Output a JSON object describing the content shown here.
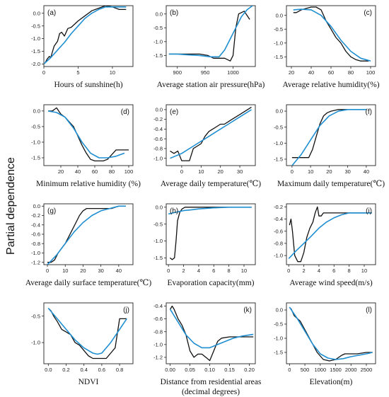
{
  "figure": {
    "ylabel": "Partial dependence",
    "colors": {
      "observed": "#111111",
      "fit": "#1f8fd1",
      "axis": "#222222"
    }
  },
  "chart_data": [
    {
      "type": "line",
      "panel": "(a)",
      "xlabel": "Hours of sunshine(h)",
      "xlim": [
        0,
        13
      ],
      "ylim": [
        -2.1,
        0.3
      ],
      "xticks": [
        0,
        5,
        10
      ],
      "yticks": [
        -2.0,
        -1.5,
        -1.0,
        -0.5,
        0.0
      ],
      "series": [
        {
          "x": [
            0.2,
            0.5,
            0.8,
            1.0,
            1.5,
            2.0,
            2.3,
            2.6,
            3.0,
            3.5,
            4.0,
            5.0,
            6.0,
            7.0,
            8.0,
            9.0,
            10.0,
            11.0,
            12.0
          ],
          "y": [
            -1.95,
            -1.8,
            -1.7,
            -1.75,
            -1.3,
            -1.1,
            -0.8,
            -0.75,
            -0.9,
            -0.6,
            -0.55,
            -0.3,
            -0.1,
            0.1,
            0.2,
            0.3,
            0.25,
            0.15,
            0.15
          ]
        },
        {
          "x": [
            0,
            1,
            2,
            3,
            4,
            5,
            6,
            7,
            8,
            9,
            10,
            11,
            12
          ],
          "y": [
            -2.0,
            -1.75,
            -1.45,
            -1.15,
            -0.8,
            -0.5,
            -0.2,
            0.0,
            0.15,
            0.25,
            0.25,
            0.25,
            0.25
          ]
        }
      ]
    },
    {
      "type": "line",
      "panel": "(b)",
      "xlabel": "Average station air pressure(hPa)",
      "xlim": [
        880,
        1040
      ],
      "ylim": [
        -1.9,
        0.3
      ],
      "xticks": [
        900,
        950,
        1000
      ],
      "yticks": [
        -1.5,
        -1.0,
        -0.5,
        0.0
      ],
      "series": [
        {
          "x": [
            885,
            900,
            920,
            940,
            955,
            965,
            975,
            985,
            995,
            1000,
            1005,
            1010,
            1020,
            1030
          ],
          "y": [
            -1.45,
            -1.45,
            -1.45,
            -1.45,
            -1.5,
            -1.6,
            -1.6,
            -1.6,
            -1.7,
            -1.5,
            -0.5,
            0.0,
            0.1,
            -0.2
          ]
        },
        {
          "x": [
            885,
            900,
            920,
            940,
            960,
            975,
            985,
            995,
            1005,
            1015,
            1025,
            1035
          ],
          "y": [
            -1.45,
            -1.45,
            -1.48,
            -1.5,
            -1.55,
            -1.55,
            -1.3,
            -0.9,
            -0.5,
            -0.1,
            0.15,
            0.3
          ]
        }
      ]
    },
    {
      "type": "line",
      "panel": "(c)",
      "xlabel": "Average relative humidity(%)",
      "xlim": [
        15,
        105
      ],
      "ylim": [
        -1.85,
        0.35
      ],
      "xticks": [
        20,
        40,
        60,
        80,
        100
      ],
      "yticks": [
        -1.5,
        -1.0,
        -0.5,
        0.0
      ],
      "series": [
        {
          "x": [
            22,
            25,
            30,
            35,
            40,
            45,
            50,
            55,
            60,
            65,
            70,
            75,
            80,
            85,
            90,
            95,
            98
          ],
          "y": [
            0.1,
            0.1,
            0.2,
            0.25,
            0.3,
            0.3,
            0.2,
            -0.2,
            -0.5,
            -0.8,
            -1.0,
            -1.3,
            -1.5,
            -1.6,
            -1.65,
            -1.65,
            -1.65
          ]
        },
        {
          "x": [
            22,
            30,
            40,
            50,
            60,
            70,
            80,
            90,
            100
          ],
          "y": [
            0.2,
            0.22,
            0.2,
            0.0,
            -0.4,
            -0.9,
            -1.3,
            -1.55,
            -1.65
          ]
        }
      ]
    },
    {
      "type": "line",
      "panel": "(d)",
      "xlabel": "Minimum relative humidity (%)",
      "xlim": [
        0,
        105
      ],
      "ylim": [
        -1.75,
        0.2
      ],
      "xticks": [
        20,
        40,
        60,
        80,
        100
      ],
      "yticks": [
        -1.5,
        -1.0,
        -0.5,
        0.0
      ],
      "series": [
        {
          "x": [
            5,
            10,
            15,
            20,
            25,
            30,
            35,
            40,
            45,
            50,
            55,
            60,
            65,
            70,
            75,
            80,
            85,
            90,
            95,
            100
          ],
          "y": [
            0.0,
            0.0,
            0.1,
            -0.1,
            -0.2,
            -0.35,
            -0.5,
            -0.8,
            -1.1,
            -1.35,
            -1.55,
            -1.6,
            -1.6,
            -1.6,
            -1.55,
            -1.4,
            -1.25,
            -1.25,
            -1.25,
            -1.25
          ]
        },
        {
          "x": [
            5,
            15,
            25,
            35,
            45,
            55,
            65,
            75,
            85,
            95
          ],
          "y": [
            0.0,
            -0.05,
            -0.2,
            -0.55,
            -1.0,
            -1.35,
            -1.5,
            -1.5,
            -1.45,
            -1.35
          ]
        }
      ]
    },
    {
      "type": "line",
      "panel": "(e)",
      "xlabel": "Average daily temperature(℃)",
      "xlim": [
        -8,
        38
      ],
      "ylim": [
        -1.15,
        0.1
      ],
      "xticks": [
        0,
        10,
        20,
        30
      ],
      "yticks": [
        -1.0,
        -0.8,
        -0.6,
        -0.4,
        -0.2,
        0.0
      ],
      "series": [
        {
          "x": [
            -6,
            -4,
            -2,
            0,
            2,
            4,
            6,
            8,
            10,
            12,
            14,
            16,
            18,
            20,
            22,
            24,
            26,
            28,
            30,
            32,
            34,
            36
          ],
          "y": [
            -0.85,
            -0.9,
            -0.85,
            -1.05,
            -1.05,
            -1.05,
            -0.8,
            -0.75,
            -0.7,
            -0.55,
            -0.45,
            -0.4,
            -0.35,
            -0.3,
            -0.3,
            -0.25,
            -0.2,
            -0.15,
            -0.1,
            -0.05,
            0.0,
            0.05
          ]
        },
        {
          "x": [
            -6,
            0,
            6,
            12,
            18,
            24,
            30,
            36
          ],
          "y": [
            -1.0,
            -0.9,
            -0.75,
            -0.6,
            -0.45,
            -0.3,
            -0.15,
            0.0
          ]
        }
      ]
    },
    {
      "type": "line",
      "panel": "(f)",
      "xlabel": "Maximum daily temperature(℃)",
      "xlim": [
        -3,
        45
      ],
      "ylim": [
        -1.7,
        0.2
      ],
      "xticks": [
        0,
        10,
        20,
        30,
        40
      ],
      "yticks": [
        -1.5,
        -1.0,
        -0.5,
        0.0
      ],
      "series": [
        {
          "x": [
            0,
            5,
            9,
            11,
            13,
            15,
            17,
            19,
            21,
            25,
            30,
            35,
            40
          ],
          "y": [
            -1.45,
            -1.45,
            -1.45,
            -1.2,
            -0.8,
            -0.4,
            -0.15,
            -0.05,
            0.0,
            0.05,
            0.05,
            0.05,
            0.05
          ]
        },
        {
          "x": [
            0,
            5,
            10,
            15,
            20,
            25,
            30,
            35,
            40
          ],
          "y": [
            -1.7,
            -1.35,
            -0.9,
            -0.45,
            -0.15,
            0.0,
            0.05,
            0.05,
            0.05
          ]
        }
      ]
    },
    {
      "type": "line",
      "panel": "(g)",
      "xlabel": "Average daily surface temperature(℃)",
      "xlim": [
        -2,
        48
      ],
      "ylim": [
        -1.25,
        0.05
      ],
      "xticks": [
        0,
        10,
        20,
        30,
        40
      ],
      "yticks": [
        -1.2,
        -1.0,
        -0.8,
        -0.6,
        -0.4,
        -0.2,
        0.0
      ],
      "series": [
        {
          "x": [
            0,
            2,
            4,
            6,
            8,
            10,
            12,
            14,
            16,
            18,
            20,
            22,
            25,
            28,
            32,
            36,
            40,
            44
          ],
          "y": [
            -1.2,
            -1.2,
            -1.15,
            -1.0,
            -0.9,
            -0.8,
            -0.65,
            -0.5,
            -0.35,
            -0.2,
            -0.1,
            -0.05,
            -0.05,
            -0.05,
            -0.05,
            -0.05,
            0.0,
            0.0
          ]
        },
        {
          "x": [
            0,
            5,
            10,
            15,
            20,
            25,
            30,
            35,
            40,
            44
          ],
          "y": [
            -1.25,
            -1.05,
            -0.8,
            -0.55,
            -0.35,
            -0.2,
            -0.1,
            -0.05,
            0.0,
            0.0
          ]
        }
      ]
    },
    {
      "type": "line",
      "panel": "(h)",
      "xlabel": "Evaporation capacity(mm)",
      "xlim": [
        -0.3,
        11.5
      ],
      "ylim": [
        -1.7,
        0.1
      ],
      "xticks": [
        0,
        2,
        4,
        6,
        8,
        10
      ],
      "yticks": [
        -1.5,
        -1.0,
        -0.5,
        0.0
      ],
      "series": [
        {
          "x": [
            0.2,
            0.5,
            0.8,
            1.0,
            1.2,
            1.5,
            1.8,
            2.2,
            3,
            4,
            6,
            8,
            10,
            11
          ],
          "y": [
            -1.5,
            -1.55,
            -1.5,
            -1.0,
            -0.4,
            -0.15,
            -0.05,
            0.0,
            0.0,
            0.0,
            0.0,
            0.0,
            0.0,
            0.0
          ]
        },
        {
          "x": [
            0,
            1,
            2,
            3,
            4,
            6,
            8,
            10,
            11
          ],
          "y": [
            -0.2,
            -0.15,
            -0.1,
            -0.08,
            -0.05,
            -0.02,
            0.0,
            0.0,
            0.0
          ]
        }
      ]
    },
    {
      "type": "line",
      "panel": "(i)",
      "xlabel": "Average wind speed(m/s)",
      "xlim": [
        -0.3,
        11.5
      ],
      "ylim": [
        -1.15,
        -0.15
      ],
      "xticks": [
        0,
        2,
        4,
        6,
        8,
        10
      ],
      "yticks": [
        -1.0,
        -0.8,
        -0.6,
        -0.4,
        -0.2
      ],
      "series": [
        {
          "x": [
            0.1,
            0.3,
            0.5,
            0.8,
            1.2,
            1.6,
            2.0,
            2.4,
            2.8,
            3.2,
            3.5,
            3.8,
            4.0,
            4.3,
            4.6,
            5,
            6,
            8,
            10,
            11
          ],
          "y": [
            -0.5,
            -0.4,
            -0.6,
            -1.0,
            -1.1,
            -1.1,
            -0.95,
            -0.7,
            -0.55,
            -0.45,
            -0.3,
            -0.2,
            -0.35,
            -0.35,
            -0.3,
            -0.3,
            -0.3,
            -0.3,
            -0.3,
            -0.3
          ]
        },
        {
          "x": [
            0,
            1,
            2,
            3,
            4,
            5,
            6,
            7,
            8,
            10,
            11
          ],
          "y": [
            -1.05,
            -0.92,
            -0.8,
            -0.68,
            -0.55,
            -0.45,
            -0.38,
            -0.33,
            -0.3,
            -0.3,
            -0.3
          ]
        }
      ]
    },
    {
      "type": "line",
      "panel": "(j)",
      "xlabel": "NDVI",
      "xlim": [
        -0.05,
        0.95
      ],
      "ylim": [
        -1.4,
        -0.25
      ],
      "xticks": [
        0.0,
        0.2,
        0.4,
        0.6,
        0.8
      ],
      "yticks": [
        -1.0,
        -0.5
      ],
      "series": [
        {
          "x": [
            0.0,
            0.03,
            0.06,
            0.1,
            0.15,
            0.2,
            0.25,
            0.3,
            0.35,
            0.4,
            0.45,
            0.5,
            0.55,
            0.6,
            0.65,
            0.7,
            0.75,
            0.8,
            0.85,
            0.88
          ],
          "y": [
            -0.35,
            -0.4,
            -0.5,
            -0.6,
            -0.75,
            -0.8,
            -0.85,
            -1.0,
            -1.05,
            -1.15,
            -1.25,
            -1.3,
            -1.3,
            -1.3,
            -1.3,
            -1.2,
            -1.1,
            -0.55,
            -0.55,
            -0.55
          ]
        },
        {
          "x": [
            0.0,
            0.1,
            0.2,
            0.3,
            0.4,
            0.5,
            0.55,
            0.6,
            0.7,
            0.8,
            0.88
          ],
          "y": [
            -0.35,
            -0.55,
            -0.75,
            -0.95,
            -1.1,
            -1.2,
            -1.22,
            -1.2,
            -1.0,
            -0.75,
            -0.55
          ]
        }
      ]
    },
    {
      "type": "line",
      "panel": "(k)",
      "xlabel": "Distance from residential areas",
      "xlabel2": "(decimal degrees)",
      "xlim": [
        -0.01,
        0.215
      ],
      "ylim": [
        -1.3,
        -0.35
      ],
      "xticks": [
        0.0,
        0.05,
        0.1,
        0.15,
        0.2
      ],
      "yticks": [
        -1.2,
        -1.0,
        -0.8,
        -0.6,
        -0.4
      ],
      "series": [
        {
          "x": [
            0.0,
            0.005,
            0.01,
            0.02,
            0.03,
            0.04,
            0.05,
            0.06,
            0.07,
            0.08,
            0.09,
            0.1,
            0.11,
            0.12,
            0.13,
            0.15,
            0.17,
            0.19,
            0.21
          ],
          "y": [
            -0.45,
            -0.4,
            -0.45,
            -0.6,
            -0.7,
            -0.85,
            -1.1,
            -1.2,
            -1.15,
            -1.15,
            -1.2,
            -1.25,
            -1.1,
            -0.95,
            -0.9,
            -0.88,
            -0.88,
            -0.88,
            -0.88
          ]
        },
        {
          "x": [
            0.0,
            0.02,
            0.04,
            0.06,
            0.08,
            0.1,
            0.12,
            0.14,
            0.16,
            0.18,
            0.21
          ],
          "y": [
            -0.45,
            -0.65,
            -0.85,
            -0.98,
            -1.05,
            -1.05,
            -1.0,
            -0.95,
            -0.9,
            -0.87,
            -0.84
          ]
        }
      ]
    },
    {
      "type": "line",
      "panel": "(l)",
      "xlabel": "Elevation(m)",
      "xlim": [
        -100,
        2800
      ],
      "ylim": [
        -1.9,
        0.25
      ],
      "xticks": [
        0,
        500,
        1000,
        1500,
        2000,
        2500
      ],
      "yticks": [
        -1.5,
        -1.0,
        -0.5,
        0.0
      ],
      "series": [
        {
          "x": [
            50,
            150,
            250,
            350,
            500,
            700,
            900,
            1100,
            1300,
            1500,
            1700,
            1800,
            2000,
            2200,
            2500,
            2700
          ],
          "y": [
            0.05,
            -0.2,
            -0.3,
            -0.4,
            -0.7,
            -1.1,
            -1.5,
            -1.75,
            -1.8,
            -1.75,
            -1.6,
            -1.55,
            -1.55,
            -1.55,
            -1.5,
            -1.5
          ]
        },
        {
          "x": [
            0,
            250,
            500,
            750,
            1000,
            1250,
            1500,
            1750,
            2000,
            2250,
            2500,
            2700
          ],
          "y": [
            0.1,
            -0.3,
            -0.75,
            -1.2,
            -1.55,
            -1.7,
            -1.75,
            -1.72,
            -1.65,
            -1.6,
            -1.55,
            -1.5
          ]
        }
      ]
    }
  ]
}
